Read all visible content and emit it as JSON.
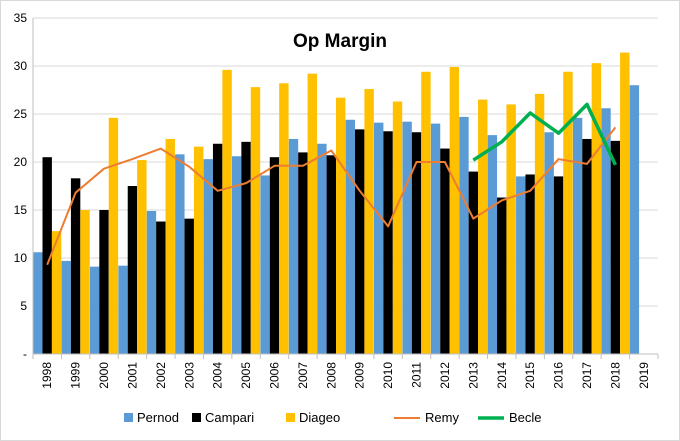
{
  "chart_data": {
    "type": "bar",
    "title": "Op Margin",
    "xlabel": "",
    "ylabel": "",
    "ylim": [
      0,
      35
    ],
    "y_ticks": [
      "-",
      "5",
      "10",
      "15",
      "20",
      "25",
      "30",
      "35"
    ],
    "y_tick_values": [
      0,
      5,
      10,
      15,
      20,
      25,
      30,
      35
    ],
    "grid": true,
    "legend_position": "bottom",
    "categories": [
      "1998",
      "1999",
      "2000",
      "2001",
      "2002",
      "2003",
      "2004",
      "2005",
      "2006",
      "2007",
      "2008",
      "2009",
      "2010",
      "2011",
      "2012",
      "2013",
      "2014",
      "2015",
      "2016",
      "2017",
      "2018",
      "2019"
    ],
    "series": [
      {
        "name": "Pernod",
        "kind": "bar",
        "color": "#5b9bd5",
        "values": [
          10.6,
          9.7,
          9.1,
          9.2,
          14.9,
          20.8,
          20.3,
          20.6,
          18.6,
          22.4,
          21.9,
          24.4,
          24.1,
          24.2,
          24.0,
          24.7,
          22.8,
          18.5,
          23.1,
          24.6,
          25.6,
          28.0
        ]
      },
      {
        "name": "Campari",
        "kind": "bar",
        "color": "#000000",
        "values": [
          20.5,
          18.3,
          15.0,
          17.5,
          13.8,
          14.1,
          21.9,
          22.1,
          20.5,
          21.0,
          20.7,
          23.4,
          23.2,
          23.1,
          21.4,
          19.0,
          16.3,
          18.7,
          18.5,
          22.4,
          22.2,
          null
        ]
      },
      {
        "name": "Diageo",
        "kind": "bar",
        "color": "#ffc000",
        "values": [
          12.8,
          15.0,
          24.6,
          20.2,
          22.4,
          21.6,
          29.6,
          27.8,
          28.2,
          29.2,
          26.7,
          27.6,
          26.3,
          29.4,
          29.9,
          26.5,
          26.0,
          27.1,
          29.4,
          30.3,
          31.4,
          null
        ]
      },
      {
        "name": "Remy",
        "kind": "line",
        "color": "#ed7d31",
        "values": [
          9.3,
          16.8,
          19.3,
          20.3,
          21.4,
          19.5,
          17.0,
          17.8,
          19.6,
          19.6,
          21.2,
          17.0,
          13.3,
          20.0,
          20.0,
          14.1,
          16.0,
          17.0,
          20.3,
          19.8,
          23.6,
          null
        ]
      },
      {
        "name": "Becle",
        "kind": "line",
        "color": "#00b050",
        "values": [
          null,
          null,
          null,
          null,
          null,
          null,
          null,
          null,
          null,
          null,
          null,
          null,
          null,
          null,
          null,
          20.2,
          22.1,
          25.1,
          23.0,
          26.0,
          19.7,
          null
        ]
      }
    ]
  }
}
